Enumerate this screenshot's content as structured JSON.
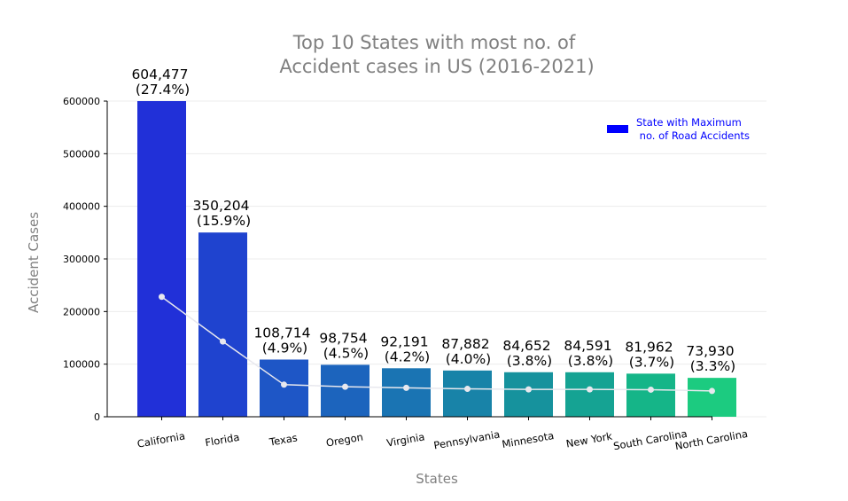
{
  "chart_data": {
    "type": "bar",
    "title_lines": [
      "Top 10 States with most no. of",
      "Accident cases in US (2016-2021)"
    ],
    "xlabel": "States",
    "ylabel": "Accident Cases",
    "ylim": [
      0,
      600000
    ],
    "yticks": [
      0,
      100000,
      200000,
      300000,
      400000,
      500000,
      600000
    ],
    "ytick_labels": [
      "0",
      "100000",
      "200000",
      "300000",
      "400000",
      "500000",
      "600000"
    ],
    "grid": "horizontal",
    "categories": [
      "California",
      "Florida",
      "Texas",
      "Oregon",
      "Virginia",
      "Pennsylvania",
      "Minnesota",
      "New York",
      "South Carolina",
      "North Carolina"
    ],
    "values": [
      604477,
      350204,
      108714,
      98754,
      92191,
      87882,
      84652,
      84591,
      81962,
      73930
    ],
    "value_labels": [
      "604,477",
      "350,204",
      "108,714",
      "98,754",
      "92,191",
      "87,882",
      "84,652",
      "84,591",
      "81,962",
      "73,930"
    ],
    "percent_labels": [
      "(27.4%)",
      "(15.9%)",
      "(4.9%)",
      "(4.5%)",
      "(4.2%)",
      "(4.0%)",
      "(3.8%)",
      "(3.8%)",
      "(3.7%)",
      "(3.3%)"
    ],
    "bar_colors": [
      "#2130d8",
      "#1f43cf",
      "#1e56c6",
      "#1c64bd",
      "#1a74b3",
      "#1883a8",
      "#16929d",
      "#15a393",
      "#15b588",
      "#1ccb80"
    ],
    "line_values": [
      228000,
      143000,
      61000,
      57000,
      55000,
      53000,
      52000,
      52000,
      51500,
      49000
    ],
    "line_color": "#e8e8ee",
    "legend": {
      "label_line1": "State with Maximum",
      "label_line2": " no. of Road Accidents",
      "color": "#0000ff",
      "placement": "top-right"
    }
  }
}
